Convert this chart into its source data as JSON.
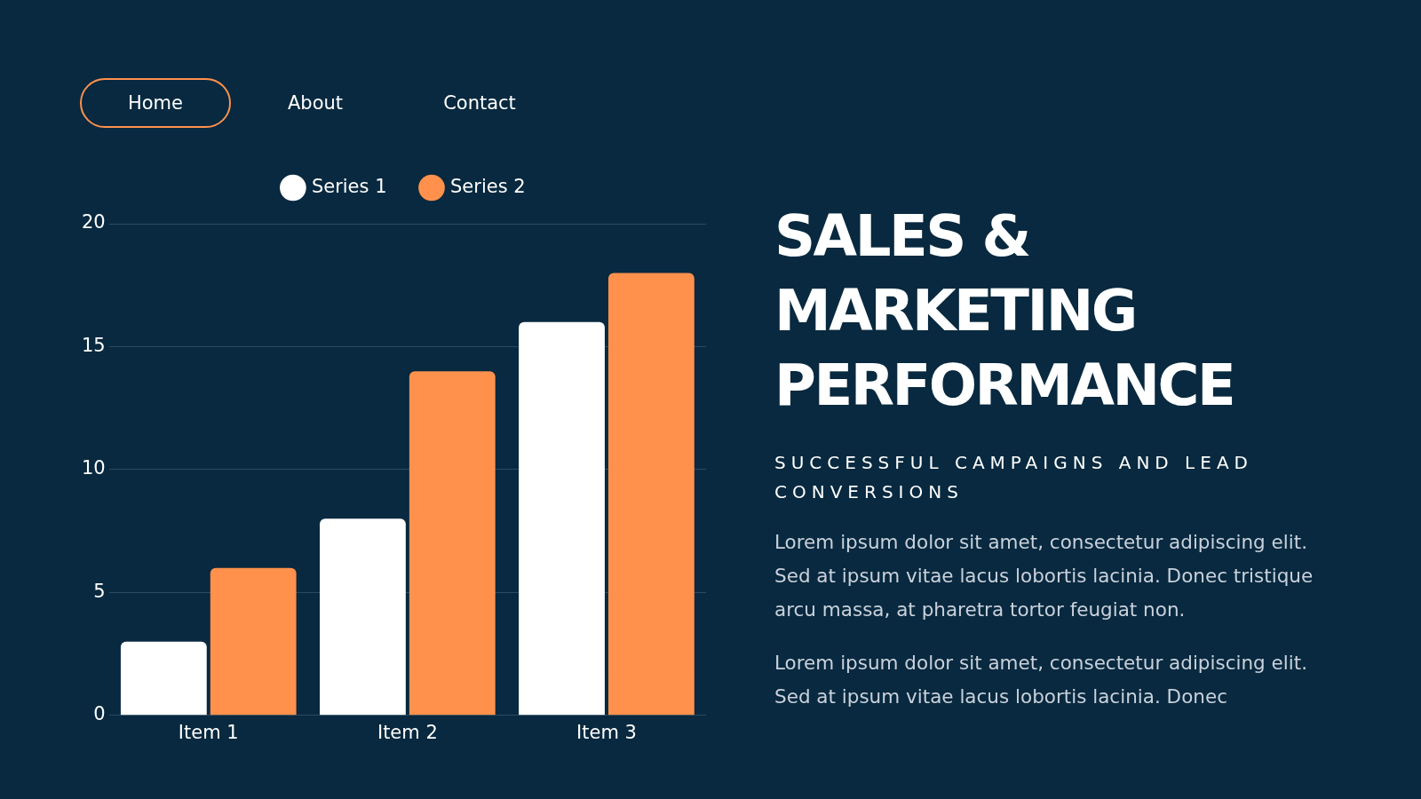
{
  "chart_data": {
    "type": "bar",
    "title": "SALES & MARKETING PERFORMANCE",
    "subtitle": "SUCCESSFUL CAMPAIGNS AND LEAD CONVERSIONS",
    "annotations": [
      "Home",
      "About",
      "Contact",
      "Lorem ipsum dolor sit amet, consectetur adipiscing elit. Sed at ipsum vitae lacus lobortis lacinia. Donec tristique arcu massa, at pharetra tortor feugiat non.",
      "Lorem ipsum dolor sit amet, consectetur adipiscing elit. Sed at ipsum vitae lacus lobortis lacinia. Donec"
    ],
    "categories": [
      "Item 1",
      "Item 2",
      "Item 3"
    ],
    "series": [
      {
        "name": "Series 1",
        "color": "#ffffff",
        "values": [
          3,
          8,
          16
        ]
      },
      {
        "name": "Series 2",
        "color": "#ff914d",
        "values": [
          6,
          14,
          18
        ]
      }
    ],
    "ylim": [
      0,
      20
    ],
    "yticks": [
      0,
      5,
      10,
      15,
      20
    ],
    "grid": "y",
    "legend": "top"
  }
}
